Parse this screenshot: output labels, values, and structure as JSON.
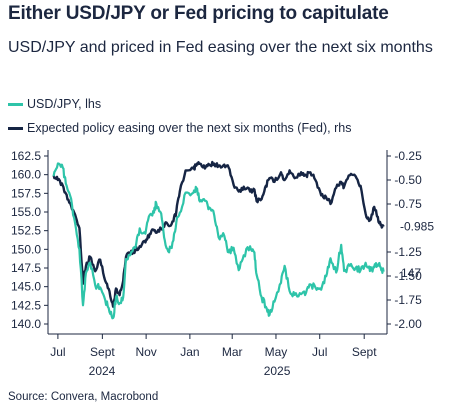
{
  "title": "Either USD/JPY or Fed pricing to capitulate",
  "subtitle": "USD/JPY and priced in Fed easing over the next six months",
  "source": "Source: Convera, Macrobond",
  "colors": {
    "usdjpy": "#2ec4a9",
    "fed": "#162544",
    "axis": "#1c2740"
  },
  "chart_data": {
    "type": "line",
    "x_axis": {
      "tick_labels": [
        "Jul",
        "Sept",
        "Nov",
        "Jan",
        "Mar",
        "May",
        "Jul",
        "Sept"
      ],
      "tick_dates": [
        "2024-07-01",
        "2024-09-01",
        "2024-11-01",
        "2025-01-01",
        "2025-03-01",
        "2025-05-01",
        "2025-07-01",
        "2025-09-01"
      ],
      "year_labels": [
        "2024",
        "2025"
      ],
      "range": [
        "2024-06-20",
        "2025-09-30"
      ]
    },
    "y_left": {
      "ticks": [
        "162.5",
        "160.0",
        "157.5",
        "155.0",
        "152.5",
        "150.0",
        "147.5",
        "145.0",
        "142.5",
        "140.0"
      ],
      "ylim": [
        140.0,
        162.5
      ]
    },
    "y_right": {
      "ticks": [
        "-0.25",
        "-0.50",
        "-0.75",
        "-1.25",
        "-1.50",
        "-1.75",
        "-2.00"
      ],
      "ylim": [
        -2.0,
        -0.25
      ]
    },
    "series": [
      {
        "name": "USD/JPY, lhs",
        "axis": "left",
        "end_label": "147",
        "points": [
          [
            "2024-06-25",
            159.8
          ],
          [
            "2024-07-01",
            161.5
          ],
          [
            "2024-07-08",
            160.9
          ],
          [
            "2024-07-12",
            158.8
          ],
          [
            "2024-07-18",
            157.2
          ],
          [
            "2024-07-25",
            153.5
          ],
          [
            "2024-07-31",
            150.0
          ],
          [
            "2024-08-05",
            142.5
          ],
          [
            "2024-08-09",
            146.8
          ],
          [
            "2024-08-15",
            148.2
          ],
          [
            "2024-08-22",
            145.2
          ],
          [
            "2024-08-29",
            144.9
          ],
          [
            "2024-09-05",
            143.2
          ],
          [
            "2024-09-11",
            141.6
          ],
          [
            "2024-09-16",
            140.8
          ],
          [
            "2024-09-20",
            143.6
          ],
          [
            "2024-09-25",
            142.8
          ],
          [
            "2024-09-30",
            143.6
          ],
          [
            "2024-10-04",
            148.7
          ],
          [
            "2024-10-10",
            149.2
          ],
          [
            "2024-10-17",
            150.2
          ],
          [
            "2024-10-23",
            152.8
          ],
          [
            "2024-10-31",
            152.1
          ],
          [
            "2024-11-06",
            154.6
          ],
          [
            "2024-11-12",
            154.9
          ],
          [
            "2024-11-15",
            156.2
          ],
          [
            "2024-11-22",
            154.8
          ],
          [
            "2024-11-27",
            151.2
          ],
          [
            "2024-12-03",
            149.6
          ],
          [
            "2024-12-09",
            151.2
          ],
          [
            "2024-12-13",
            153.6
          ],
          [
            "2024-12-18",
            154.9
          ],
          [
            "2024-12-26",
            157.6
          ],
          [
            "2025-01-06",
            157.6
          ],
          [
            "2025-01-10",
            158.2
          ],
          [
            "2025-01-15",
            156.4
          ],
          [
            "2025-01-22",
            156.5
          ],
          [
            "2025-01-28",
            155.6
          ],
          [
            "2025-02-04",
            154.5
          ],
          [
            "2025-02-10",
            151.6
          ],
          [
            "2025-02-18",
            151.8
          ],
          [
            "2025-02-24",
            149.6
          ],
          [
            "2025-03-03",
            150.2
          ],
          [
            "2025-03-10",
            147.2
          ],
          [
            "2025-03-17",
            149.2
          ],
          [
            "2025-03-26",
            150.4
          ],
          [
            "2025-04-01",
            149.6
          ],
          [
            "2025-04-04",
            146.6
          ],
          [
            "2025-04-11",
            143.6
          ],
          [
            "2025-04-17",
            142.3
          ],
          [
            "2025-04-22",
            141.2
          ],
          [
            "2025-04-29",
            143.0
          ],
          [
            "2025-05-08",
            145.5
          ],
          [
            "2025-05-13",
            147.8
          ],
          [
            "2025-05-20",
            144.4
          ],
          [
            "2025-05-27",
            143.9
          ],
          [
            "2025-06-05",
            144.0
          ],
          [
            "2025-06-12",
            144.2
          ],
          [
            "2025-06-18",
            145.3
          ],
          [
            "2025-06-25",
            144.9
          ],
          [
            "2025-07-03",
            144.6
          ],
          [
            "2025-07-10",
            146.4
          ],
          [
            "2025-07-16",
            148.8
          ],
          [
            "2025-07-24",
            146.9
          ],
          [
            "2025-07-31",
            150.6
          ],
          [
            "2025-08-04",
            147.1
          ],
          [
            "2025-08-12",
            147.8
          ],
          [
            "2025-08-20",
            147.5
          ],
          [
            "2025-08-27",
            147.2
          ],
          [
            "2025-09-03",
            148.2
          ],
          [
            "2025-09-09",
            147.1
          ],
          [
            "2025-09-15",
            147.6
          ],
          [
            "2025-09-19",
            147.9
          ],
          [
            "2025-09-24",
            147.6
          ],
          [
            "2025-09-28",
            147.0
          ]
        ]
      },
      {
        "name": "Expected policy easing over the next six months (Fed), rhs",
        "axis": "right",
        "end_label": "-0.985",
        "points": [
          [
            "2024-06-25",
            -0.45
          ],
          [
            "2024-07-01",
            -0.5
          ],
          [
            "2024-07-08",
            -0.56
          ],
          [
            "2024-07-12",
            -0.64
          ],
          [
            "2024-07-18",
            -0.74
          ],
          [
            "2024-07-25",
            -0.86
          ],
          [
            "2024-07-31",
            -1.0
          ],
          [
            "2024-08-05",
            -1.58
          ],
          [
            "2024-08-09",
            -1.4
          ],
          [
            "2024-08-15",
            -1.3
          ],
          [
            "2024-08-22",
            -1.45
          ],
          [
            "2024-08-29",
            -1.33
          ],
          [
            "2024-09-05",
            -1.55
          ],
          [
            "2024-09-11",
            -1.66
          ],
          [
            "2024-09-16",
            -1.82
          ],
          [
            "2024-09-20",
            -1.63
          ],
          [
            "2024-09-25",
            -1.7
          ],
          [
            "2024-09-30",
            -1.55
          ],
          [
            "2024-10-04",
            -1.3
          ],
          [
            "2024-10-10",
            -1.26
          ],
          [
            "2024-10-17",
            -1.23
          ],
          [
            "2024-10-23",
            -1.19
          ],
          [
            "2024-10-31",
            -1.15
          ],
          [
            "2024-11-06",
            -1.06
          ],
          [
            "2024-11-12",
            -1.02
          ],
          [
            "2024-11-15",
            -1.05
          ],
          [
            "2024-11-22",
            -1.01
          ],
          [
            "2024-11-27",
            -0.96
          ],
          [
            "2024-12-03",
            -0.98
          ],
          [
            "2024-12-09",
            -0.93
          ],
          [
            "2024-12-13",
            -0.83
          ],
          [
            "2024-12-18",
            -0.62
          ],
          [
            "2024-12-26",
            -0.4
          ],
          [
            "2025-01-06",
            -0.38
          ],
          [
            "2025-01-10",
            -0.35
          ],
          [
            "2025-01-15",
            -0.33
          ],
          [
            "2025-01-22",
            -0.38
          ],
          [
            "2025-01-28",
            -0.34
          ],
          [
            "2025-02-04",
            -0.33
          ],
          [
            "2025-02-10",
            -0.35
          ],
          [
            "2025-02-18",
            -0.34
          ],
          [
            "2025-02-24",
            -0.37
          ],
          [
            "2025-03-03",
            -0.55
          ],
          [
            "2025-03-10",
            -0.62
          ],
          [
            "2025-03-17",
            -0.57
          ],
          [
            "2025-03-26",
            -0.62
          ],
          [
            "2025-04-01",
            -0.6
          ],
          [
            "2025-04-04",
            -0.72
          ],
          [
            "2025-04-11",
            -0.7
          ],
          [
            "2025-04-17",
            -0.56
          ],
          [
            "2025-04-22",
            -0.48
          ],
          [
            "2025-04-29",
            -0.52
          ],
          [
            "2025-05-08",
            -0.42
          ],
          [
            "2025-05-13",
            -0.5
          ],
          [
            "2025-05-20",
            -0.4
          ],
          [
            "2025-05-27",
            -0.48
          ],
          [
            "2025-06-05",
            -0.42
          ],
          [
            "2025-06-12",
            -0.45
          ],
          [
            "2025-06-18",
            -0.42
          ],
          [
            "2025-06-25",
            -0.5
          ],
          [
            "2025-07-03",
            -0.66
          ],
          [
            "2025-07-10",
            -0.68
          ],
          [
            "2025-07-16",
            -0.75
          ],
          [
            "2025-07-24",
            -0.58
          ],
          [
            "2025-07-31",
            -0.52
          ],
          [
            "2025-08-04",
            -0.57
          ],
          [
            "2025-08-12",
            -0.45
          ],
          [
            "2025-08-20",
            -0.46
          ],
          [
            "2025-08-27",
            -0.56
          ],
          [
            "2025-09-03",
            -0.85
          ],
          [
            "2025-09-09",
            -0.92
          ],
          [
            "2025-09-15",
            -0.78
          ],
          [
            "2025-09-19",
            -0.88
          ],
          [
            "2025-09-24",
            -0.97
          ],
          [
            "2025-09-28",
            -0.985
          ]
        ]
      }
    ],
    "grid": false
  }
}
